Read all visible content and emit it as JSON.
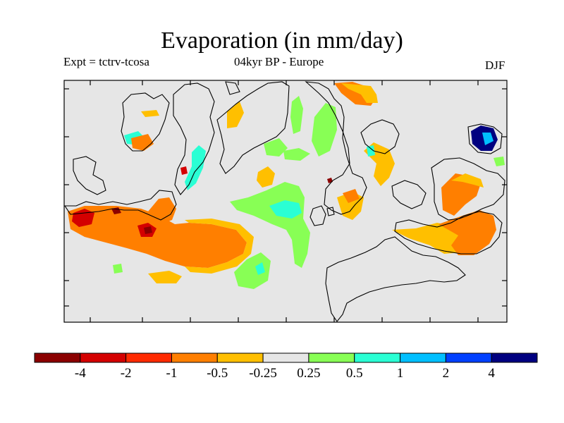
{
  "title": "Evaporation (in mm/day)",
  "subtitle_left": "Expt = tctrv-tcosa",
  "subtitle_center": "04kyr BP - Europe",
  "subtitle_right": "DJF",
  "colorbar": {
    "colors": [
      "#8b0000",
      "#d40000",
      "#ff2a00",
      "#ff7f00",
      "#ffbf00",
      "#e6e6e6",
      "#88ff55",
      "#2affd4",
      "#00bfff",
      "#0040ff",
      "#000080"
    ],
    "labels": [
      "-4",
      "-2",
      "-1",
      "-0.5",
      "-0.25",
      "0.25",
      "0.5",
      "1",
      "2",
      "4"
    ]
  },
  "chart_data": {
    "type": "heatmap",
    "title": "Evaporation (in mm/day)",
    "region": "Europe",
    "period": "04kyr BP",
    "season": "DJF",
    "units": "mm/day",
    "levels": [
      -4,
      -2,
      -1,
      -0.5,
      -0.25,
      0.25,
      0.5,
      1,
      2,
      4
    ]
  }
}
